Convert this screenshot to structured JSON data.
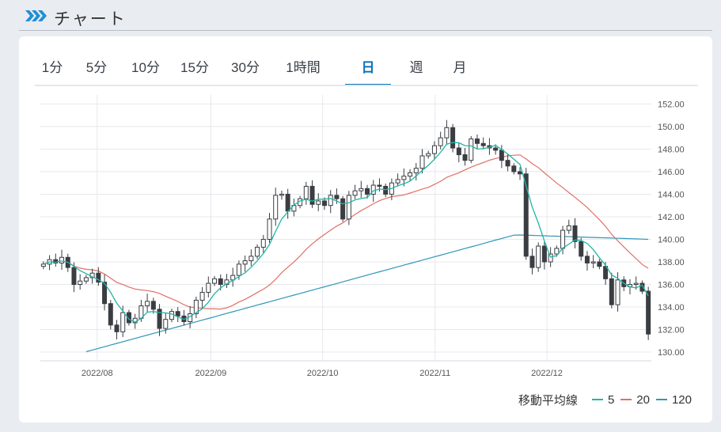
{
  "header": {
    "title": "チャート"
  },
  "tabs": [
    {
      "label": "1分",
      "active": false
    },
    {
      "label": "5分",
      "active": false
    },
    {
      "label": "10分",
      "active": false
    },
    {
      "label": "15分",
      "active": false
    },
    {
      "label": "30分",
      "active": false
    },
    {
      "label": "1時間",
      "active": false
    },
    {
      "label": "日",
      "active": true
    },
    {
      "label": "週",
      "active": false
    },
    {
      "label": "月",
      "active": false
    }
  ],
  "legend": {
    "label": "移動平均線",
    "items": [
      {
        "name": "5",
        "color": "#21b5a6"
      },
      {
        "name": "20",
        "color": "#e07066"
      },
      {
        "name": "120",
        "color": "#2f96b8"
      }
    ]
  },
  "colors": {
    "accent": "#0e74b8",
    "up": "#ffffff",
    "down": "#3a3d42",
    "wick": "#3a3d42"
  },
  "chart_data": {
    "type": "candlestick",
    "title": "",
    "ylim": [
      129.3,
      152.8
    ],
    "y_ticks": [
      "152.00",
      "150.00",
      "148.00",
      "146.00",
      "144.00",
      "142.00",
      "140.00",
      "138.00",
      "136.00",
      "134.00",
      "132.00",
      "130.00"
    ],
    "x_ticks": [
      "2022/08",
      "2022/09",
      "2022/10",
      "2022/11",
      "2022/12"
    ],
    "x_tick_positions": [
      9.3,
      27.9,
      46.2,
      64.6,
      82.9
    ],
    "n_points": 100,
    "ohlc_closes": [
      137.8,
      138.2,
      137.9,
      138.4,
      137.5,
      136.0,
      136.3,
      136.6,
      137.0,
      136.2,
      134.3,
      132.4,
      131.8,
      133.5,
      132.6,
      133.0,
      134.1,
      134.5,
      133.8,
      132.1,
      132.9,
      133.6,
      133.2,
      132.7,
      133.4,
      134.6,
      135.3,
      136.1,
      136.5,
      136.0,
      136.4,
      136.8,
      137.8,
      138.1,
      138.5,
      139.3,
      140.0,
      141.8,
      143.9,
      144.0,
      142.5,
      143.0,
      143.6,
      144.7,
      143.1,
      143.4,
      143.0,
      143.9,
      143.6,
      141.8,
      143.9,
      144.3,
      144.5,
      144.0,
      144.8,
      144.7,
      144.0,
      145.0,
      145.3,
      145.6,
      145.9,
      146.3,
      147.4,
      147.6,
      148.3,
      149.0,
      149.9,
      148.1,
      147.5,
      147.0,
      148.9,
      148.5,
      148.3,
      148.1,
      147.9,
      147.0,
      146.5,
      146.0,
      145.8,
      138.5,
      137.5,
      139.4,
      138.0,
      138.7,
      139.2,
      140.8,
      141.2,
      139.8,
      138.5,
      137.9,
      138.0,
      137.6,
      136.5,
      134.2,
      136.4,
      135.8,
      136.0,
      136.1,
      135.4,
      131.6
    ],
    "candle_layout_note": "",
    "ma_series": [
      {
        "name": "5"
      },
      {
        "name": "20"
      },
      {
        "name": "120"
      }
    ]
  }
}
